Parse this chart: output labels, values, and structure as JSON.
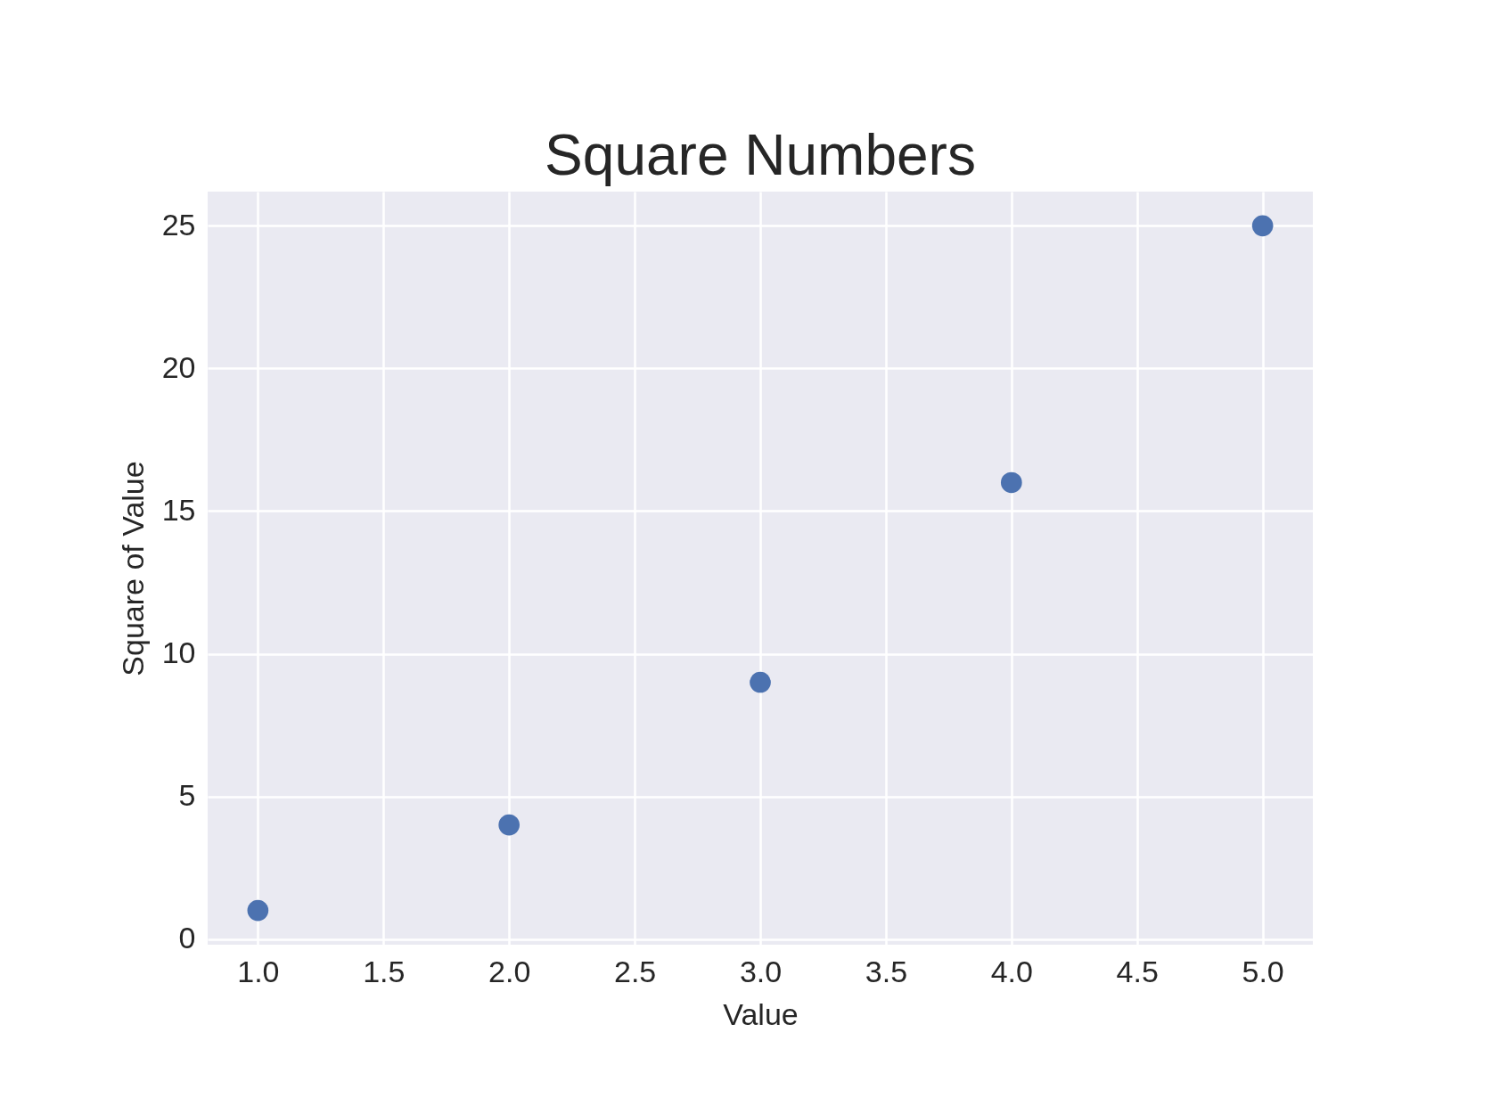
{
  "chart_data": {
    "type": "scatter",
    "title": "Square Numbers",
    "xlabel": "Value",
    "ylabel": "Square of Value",
    "x": [
      1,
      2,
      3,
      4,
      5
    ],
    "series": [
      {
        "color": "#4c72b0",
        "values": [
          1,
          4,
          9,
          16,
          25
        ]
      }
    ],
    "xlim": [
      0.8,
      5.2
    ],
    "ylim": [
      -0.2,
      26.2
    ],
    "xticks": [
      {
        "value": 1,
        "label": "1.0"
      },
      {
        "value": 1.5,
        "label": "1.5"
      },
      {
        "value": 2,
        "label": "2.0"
      },
      {
        "value": 2.5,
        "label": "2.5"
      },
      {
        "value": 3,
        "label": "3.0"
      },
      {
        "value": 3.5,
        "label": "3.5"
      },
      {
        "value": 4,
        "label": "4.0"
      },
      {
        "value": 4.5,
        "label": "4.5"
      },
      {
        "value": 5,
        "label": "5.0"
      }
    ],
    "yticks": [
      0,
      5,
      10,
      15,
      20,
      25
    ],
    "grid": true,
    "marker": "circle"
  }
}
